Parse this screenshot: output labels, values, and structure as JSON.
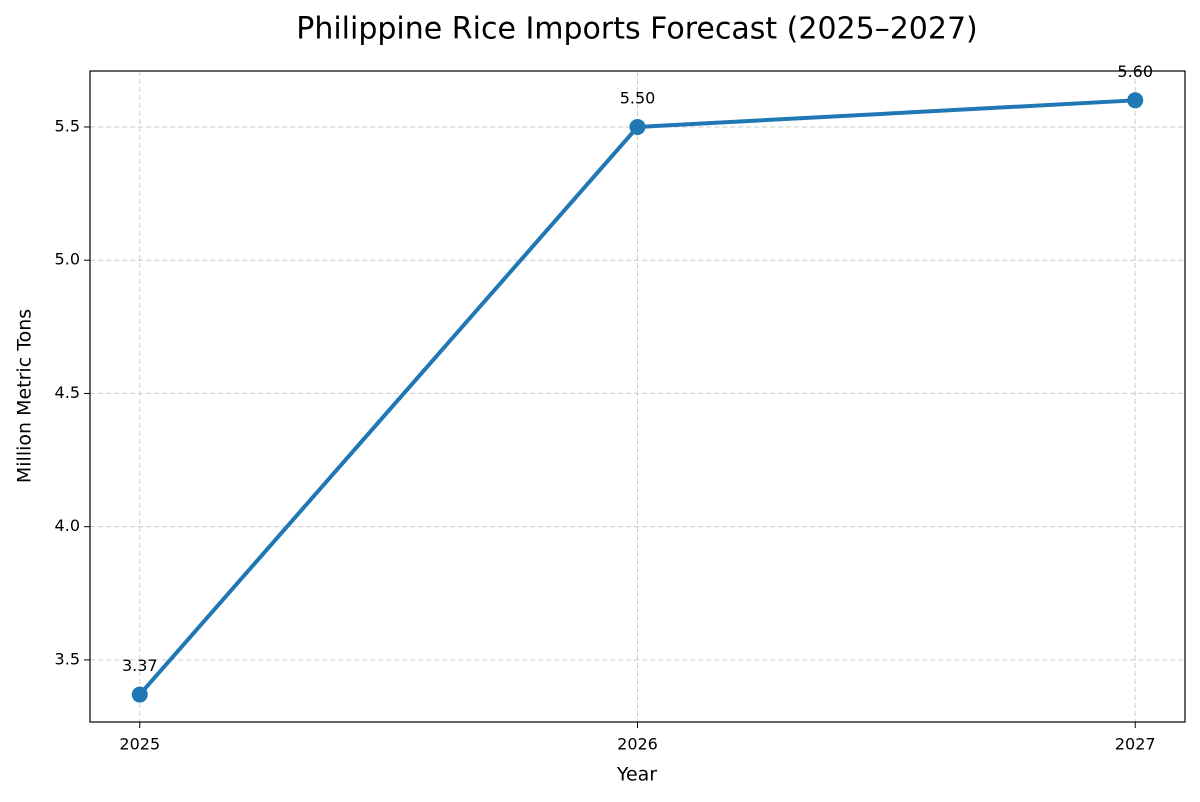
{
  "chart_data": {
    "type": "line",
    "title": "Philippine Rice Imports Forecast (2025–2027)",
    "xlabel": "Year",
    "ylabel": "Million Metric Tons",
    "x": [
      2025,
      2026,
      2027
    ],
    "values": [
      3.37,
      5.5,
      5.6
    ],
    "value_labels": [
      "3.37",
      "5.50",
      "5.60"
    ],
    "color": "#1f77b4",
    "xlim": [
      2024.9,
      2027.1
    ],
    "xticks": [
      2025,
      2026,
      2027
    ],
    "ylim": [
      3.267,
      5.71
    ],
    "yticks": [
      3.5,
      {
        "value": 4.0,
        "label": "4.0"
      },
      4.5,
      {
        "value": 5.0,
        "label": "5.0"
      },
      5.5
    ],
    "grid": true
  }
}
